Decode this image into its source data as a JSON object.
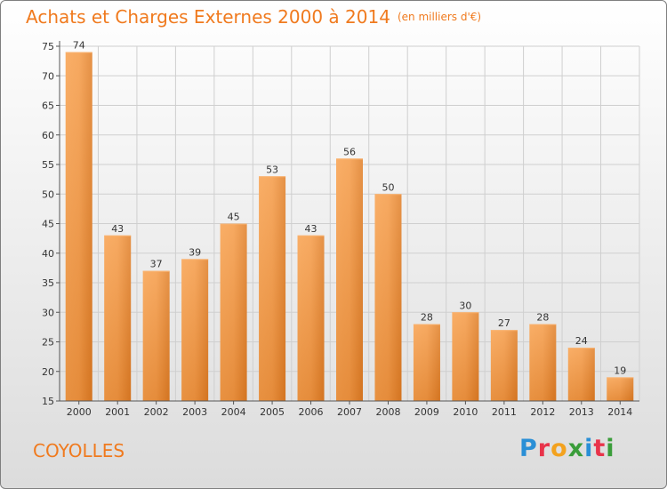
{
  "title": "Achats et Charges Externes 2000 à 2014",
  "unit": "(en milliers d'€)",
  "commune": "COYOLLES",
  "logo": {
    "text": "Proxiti",
    "letters": [
      {
        "ch": "P",
        "color": "#2a8fd6"
      },
      {
        "ch": "r",
        "color": "#e8334a"
      },
      {
        "ch": "o",
        "color": "#f3a21e"
      },
      {
        "ch": "x",
        "color": "#3a9d3a"
      },
      {
        "ch": "i",
        "color": "#2a8fd6"
      },
      {
        "ch": "t",
        "color": "#e8334a"
      },
      {
        "ch": "i",
        "color": "#3a9d3a"
      }
    ]
  },
  "colors": {
    "accent": "#f07a1e",
    "bar_light": "#f7a14e",
    "bar_dark": "#d9731e",
    "grid": "#cfcfcf"
  },
  "chart_data": {
    "type": "bar",
    "title": "Achats et Charges Externes 2000 à 2014",
    "subtitle": "(en milliers d'€)",
    "categories": [
      "2000",
      "2001",
      "2002",
      "2003",
      "2004",
      "2005",
      "2006",
      "2007",
      "2008",
      "2009",
      "2010",
      "2011",
      "2012",
      "2013",
      "2014"
    ],
    "values": [
      74,
      43,
      37,
      39,
      45,
      53,
      43,
      56,
      50,
      28,
      30,
      27,
      28,
      24,
      19
    ],
    "xlabel": "",
    "ylabel": "",
    "ylim": [
      15,
      75
    ],
    "yticks": [
      15,
      20,
      25,
      30,
      35,
      40,
      45,
      50,
      55,
      60,
      65,
      70,
      75
    ],
    "grid": true,
    "data_labels": true
  }
}
